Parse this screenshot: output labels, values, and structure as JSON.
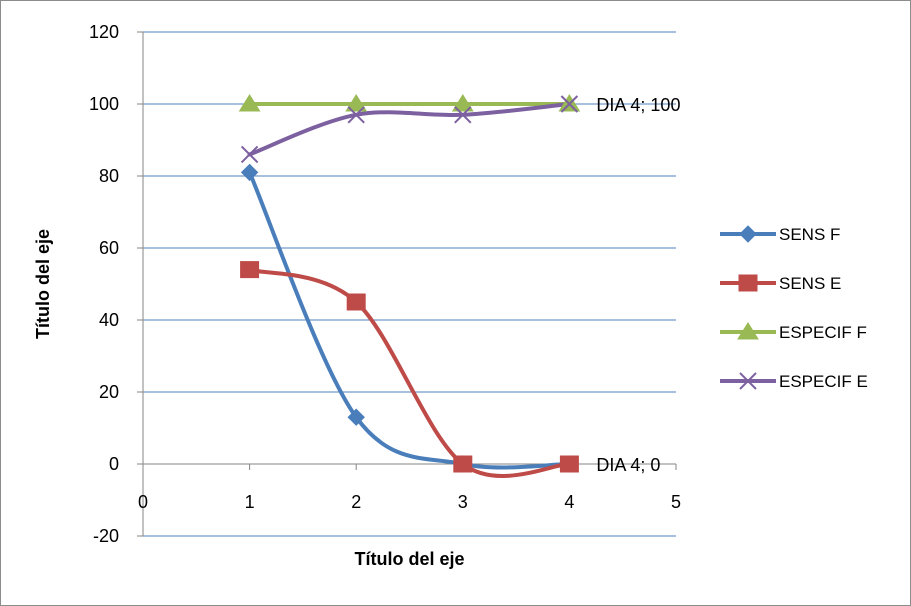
{
  "chart_data": {
    "type": "line",
    "smooth": true,
    "title": "",
    "xlabel": "Título del eje",
    "ylabel": "Título del eje",
    "xlim": [
      0,
      5
    ],
    "ylim": [
      -20,
      120
    ],
    "x_ticks": [
      0,
      1,
      2,
      3,
      4,
      5
    ],
    "y_ticks": [
      -20,
      0,
      20,
      40,
      60,
      80,
      100,
      120
    ],
    "grid": "horizontal",
    "legend_position": "right",
    "x": [
      1,
      2,
      3,
      4
    ],
    "series": [
      {
        "name": "SENS F",
        "values": [
          81,
          13,
          0,
          0
        ],
        "color": "#4a7ebb",
        "marker": "diamond"
      },
      {
        "name": "SENS E",
        "values": [
          54,
          45,
          0,
          0
        ],
        "color": "#be4b48",
        "marker": "square"
      },
      {
        "name": "ESPECIF F",
        "values": [
          100,
          100,
          100,
          100
        ],
        "color": "#98b954",
        "marker": "triangle"
      },
      {
        "name": "ESPECIF E",
        "values": [
          86,
          97,
          97,
          100
        ],
        "color": "#7d60a0",
        "marker": "x"
      }
    ],
    "annotations": [
      {
        "text": "DIA 4; 100",
        "x": 4,
        "y": 100
      },
      {
        "text": "DIA 4; 0",
        "x": 4,
        "y": 0
      }
    ]
  }
}
